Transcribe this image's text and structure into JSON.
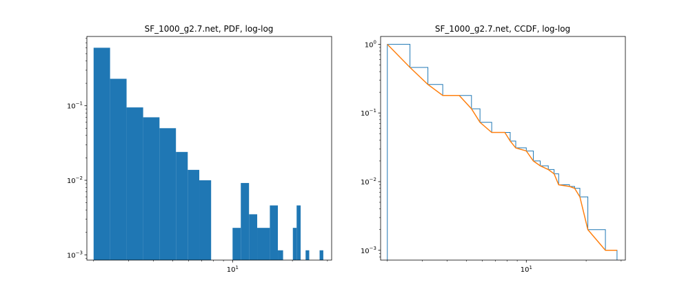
{
  "chart_data": [
    {
      "type": "bar",
      "title": "SF_1000_g2.7.net, PDF, log-log",
      "xscale": "log",
      "yscale": "log",
      "xlim": [
        1.85,
        31.5
      ],
      "ylim": [
        0.00085,
        0.85
      ],
      "bar_color": "#1f77b4",
      "x_ticks": [
        {
          "value": 10,
          "base": "10",
          "exp": "1"
        }
      ],
      "y_ticks": [
        {
          "value": 0.001,
          "base": "10",
          "exp": "−3"
        },
        {
          "value": 0.01,
          "base": "10",
          "exp": "−2"
        },
        {
          "value": 0.1,
          "base": "10",
          "exp": "−1"
        }
      ],
      "bins": [
        {
          "x0": 2.0,
          "x1": 2.42,
          "value": 0.6
        },
        {
          "x0": 2.42,
          "x1": 2.93,
          "value": 0.23
        },
        {
          "x0": 2.93,
          "x1": 3.55,
          "value": 0.095
        },
        {
          "x0": 3.55,
          "x1": 4.29,
          "value": 0.07
        },
        {
          "x0": 4.29,
          "x1": 5.19,
          "value": 0.05
        },
        {
          "x0": 5.19,
          "x1": 5.95,
          "value": 0.024
        },
        {
          "x0": 5.95,
          "x1": 6.8,
          "value": 0.0138
        },
        {
          "x0": 6.8,
          "x1": 7.8,
          "value": 0.01
        },
        {
          "x0": 10.0,
          "x1": 11.0,
          "value": 0.0023
        },
        {
          "x0": 11.0,
          "x1": 12.1,
          "value": 0.0092
        },
        {
          "x0": 12.1,
          "x1": 13.3,
          "value": 0.0035
        },
        {
          "x0": 13.3,
          "x1": 15.4,
          "value": 0.0023
        },
        {
          "x0": 15.4,
          "x1": 16.9,
          "value": 0.0046
        },
        {
          "x0": 16.9,
          "x1": 17.95,
          "value": 0.00115
        },
        {
          "x0": 20.1,
          "x1": 21.0,
          "value": 0.0023
        },
        {
          "x0": 21.0,
          "x1": 22.0,
          "value": 0.0046
        },
        {
          "x0": 23.3,
          "x1": 24.3,
          "value": 0.00115
        },
        {
          "x0": 27.4,
          "x1": 28.6,
          "value": 0.00115
        }
      ]
    },
    {
      "type": "line",
      "title": "SF_1000_g2.7.net, CCDF, log-log",
      "xscale": "log",
      "yscale": "log",
      "xlim": [
        1.85,
        31.5
      ],
      "ylim": [
        0.00072,
        1.3
      ],
      "x_ticks": [
        {
          "value": 10,
          "base": "10",
          "exp": "1"
        }
      ],
      "y_ticks": [
        {
          "value": 0.001,
          "base": "10",
          "exp": "−3"
        },
        {
          "value": 0.01,
          "base": "10",
          "exp": "−2"
        },
        {
          "value": 0.1,
          "base": "10",
          "exp": "−1"
        },
        {
          "value": 1,
          "base": "10",
          "exp": "0"
        }
      ],
      "series": [
        {
          "name": "histogram",
          "style": "step",
          "color": "#1f77b4",
          "edges": [
            2.0,
            2.6,
            3.2,
            3.8,
            4.6,
            5.3,
            5.85,
            6.7,
            7.8,
            8.3,
            8.85,
            10.0,
            10.85,
            11.75,
            12.9,
            13.8,
            14.55,
            16.5,
            17.5,
            18.6,
            20.4,
            25.0
          ],
          "values": [
            1.0,
            0.46,
            0.26,
            0.18,
            0.18,
            0.115,
            0.073,
            0.052,
            0.052,
            0.039,
            0.031,
            0.028,
            0.02,
            0.017,
            0.015,
            0.013,
            0.009,
            0.0085,
            0.008,
            0.006,
            0.002,
            0.001
          ]
        },
        {
          "name": "ccdf",
          "style": "line",
          "color": "#ff7f0e",
          "x": [
            2.0,
            2.6,
            3.2,
            3.8,
            4.6,
            5.3,
            5.85,
            6.7,
            7.8,
            8.3,
            8.85,
            10.0,
            10.85,
            11.75,
            12.9,
            13.8,
            14.55,
            16.5,
            17.5,
            18.6,
            20.4,
            25.0
          ],
          "y": [
            1.0,
            0.46,
            0.26,
            0.18,
            0.18,
            0.115,
            0.073,
            0.052,
            0.052,
            0.039,
            0.031,
            0.028,
            0.02,
            0.017,
            0.015,
            0.013,
            0.009,
            0.0085,
            0.008,
            0.006,
            0.002,
            0.001
          ]
        }
      ]
    }
  ]
}
